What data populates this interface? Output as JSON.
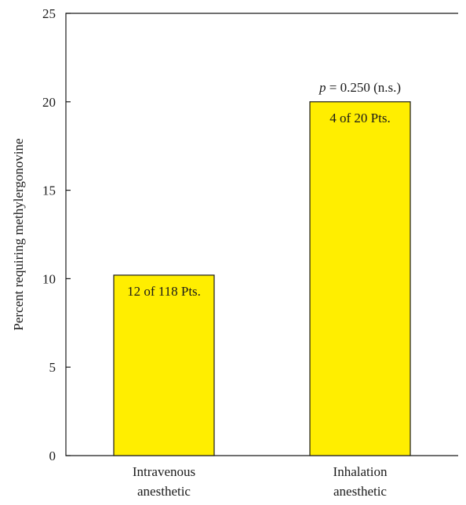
{
  "chart_data": {
    "type": "bar",
    "ylabel": "Percent requiring methylergonovine",
    "ylim": [
      0,
      25
    ],
    "yticks": [
      0,
      5,
      10,
      15,
      20,
      25
    ],
    "grid": false,
    "bar_color": "#ffee00",
    "categories": [
      [
        "Intravenous",
        "anesthetic"
      ],
      [
        "Inhalation",
        "anesthetic"
      ]
    ],
    "values": [
      10.2,
      20.0
    ],
    "bar_labels": [
      "12 of 118 Pts.",
      "4 of 20 Pts."
    ],
    "annotation": {
      "italic_part": "p",
      "text": " = 0.250 (n.s.)",
      "bar_index": 1
    }
  }
}
